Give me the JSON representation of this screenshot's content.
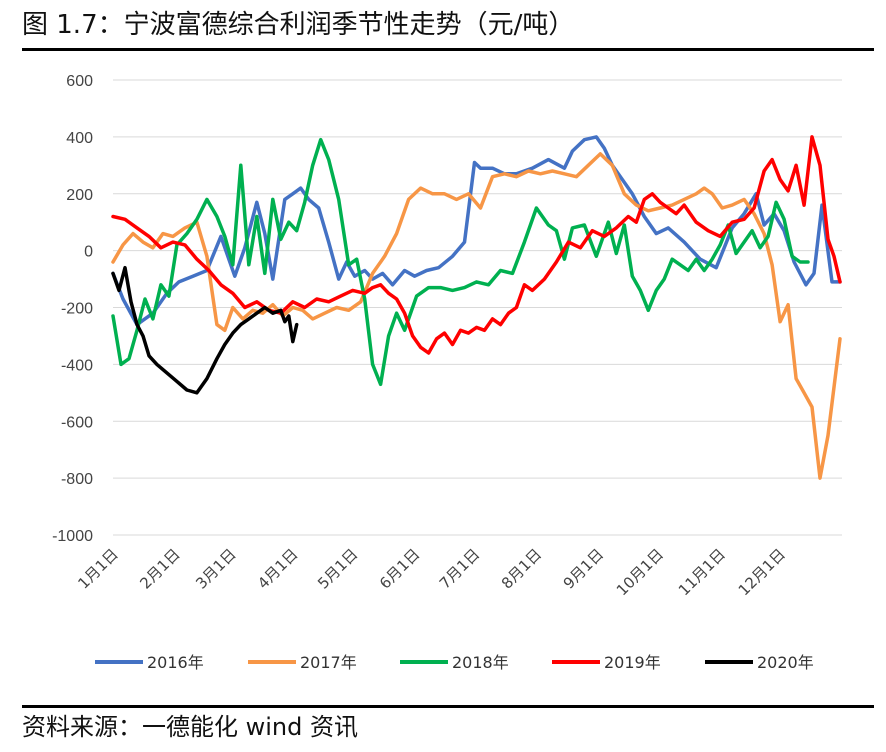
{
  "title": "图 1.7：宁波富德综合利润季节性走势（元/吨）",
  "source": "资料来源：一德能化 wind 资讯",
  "chart_data": {
    "type": "line",
    "title": "图 1.7：宁波富德综合利润季节性走势（元/吨）",
    "ylim": [
      -1000,
      600
    ],
    "yticks": [
      600,
      400,
      200,
      0,
      -200,
      -400,
      -600,
      -800,
      -1000
    ],
    "xlim": [
      0,
      365
    ],
    "xtick_labels": [
      "1月1日",
      "2月1日",
      "3月1日",
      "4月1日",
      "5月1日",
      "6月1日",
      "7月1日",
      "8月1日",
      "9月1日",
      "10月1日",
      "11月1日",
      "12月1日"
    ],
    "xtick_days": [
      0,
      31,
      59,
      90,
      120,
      151,
      181,
      212,
      243,
      273,
      304,
      334
    ],
    "grid": "horizontal",
    "legend_position": "bottom",
    "series": [
      {
        "name": "2016年",
        "color": "#4472C4",
        "x": [
          0,
          5,
          12,
          20,
          27,
          33,
          40,
          47,
          54,
          61,
          66,
          72,
          76,
          80,
          86,
          90,
          94,
          98,
          103,
          108,
          113,
          117,
          121,
          126,
          130,
          135,
          140,
          146,
          151,
          157,
          163,
          170,
          176,
          181,
          184,
          190,
          196,
          202,
          210,
          218,
          226,
          230,
          236,
          242,
          246,
          250,
          255,
          260,
          266,
          272,
          278,
          286,
          294,
          302,
          310,
          316,
          322,
          326,
          331,
          336,
          341,
          347,
          351,
          355,
          360,
          364
        ],
        "y": [
          -80,
          -170,
          -260,
          -220,
          -150,
          -110,
          -90,
          -70,
          50,
          -90,
          10,
          170,
          60,
          -100,
          180,
          200,
          220,
          180,
          150,
          30,
          -100,
          -40,
          -90,
          -70,
          -100,
          -80,
          -120,
          -70,
          -90,
          -70,
          -60,
          -20,
          30,
          310,
          290,
          290,
          270,
          270,
          290,
          320,
          290,
          350,
          390,
          400,
          360,
          300,
          250,
          200,
          120,
          60,
          80,
          30,
          -30,
          -60,
          80,
          130,
          200,
          90,
          130,
          70,
          -40,
          -120,
          -80,
          160,
          -110,
          -110
        ]
      },
      {
        "name": "2017年",
        "color": "#F79646",
        "x": [
          0,
          5,
          10,
          15,
          20,
          25,
          30,
          36,
          42,
          47,
          52,
          56,
          60,
          65,
          70,
          75,
          80,
          85,
          90,
          95,
          100,
          106,
          112,
          118,
          124,
          130,
          136,
          142,
          148,
          154,
          160,
          166,
          172,
          178,
          184,
          190,
          196,
          202,
          208,
          214,
          220,
          226,
          232,
          238,
          244,
          250,
          256,
          262,
          268,
          274,
          280,
          286,
          292,
          296,
          300,
          305,
          310,
          316,
          321,
          326,
          330,
          334,
          338,
          342,
          346,
          350,
          354,
          358,
          364
        ],
        "y": [
          -40,
          20,
          60,
          30,
          10,
          60,
          50,
          80,
          100,
          -20,
          -260,
          -280,
          -200,
          -240,
          -210,
          -220,
          -190,
          -230,
          -200,
          -210,
          -240,
          -220,
          -200,
          -210,
          -180,
          -80,
          -20,
          60,
          180,
          220,
          200,
          200,
          180,
          200,
          150,
          260,
          270,
          260,
          280,
          270,
          280,
          270,
          260,
          300,
          340,
          300,
          200,
          160,
          140,
          150,
          160,
          180,
          200,
          220,
          200,
          150,
          160,
          180,
          130,
          60,
          -50,
          -250,
          -190,
          -450,
          -500,
          -550,
          -800,
          -650,
          -310
        ]
      },
      {
        "name": "2018年",
        "color": "#00B050",
        "x": [
          0,
          4,
          8,
          12,
          16,
          20,
          24,
          28,
          32,
          37,
          42,
          47,
          52,
          56,
          60,
          64,
          68,
          72,
          76,
          80,
          84,
          88,
          92,
          96,
          100,
          104,
          108,
          113,
          118,
          122,
          126,
          130,
          134,
          138,
          142,
          146,
          152,
          158,
          164,
          170,
          176,
          182,
          188,
          194,
          200,
          206,
          212,
          218,
          222,
          226,
          230,
          236,
          242,
          248,
          252,
          256,
          260,
          264,
          268,
          272,
          276,
          280,
          284,
          288,
          292,
          296,
          300,
          304,
          308,
          312,
          316,
          320,
          324,
          328,
          332,
          336,
          340,
          344,
          348
        ],
        "y": [
          -230,
          -400,
          -380,
          -280,
          -170,
          -240,
          -120,
          -160,
          20,
          60,
          110,
          180,
          120,
          50,
          -50,
          300,
          -50,
          120,
          -80,
          180,
          40,
          100,
          70,
          170,
          300,
          390,
          320,
          180,
          -50,
          -30,
          -170,
          -400,
          -470,
          -300,
          -220,
          -280,
          -160,
          -130,
          -130,
          -140,
          -130,
          -110,
          -120,
          -70,
          -80,
          30,
          150,
          90,
          70,
          -30,
          80,
          90,
          -20,
          100,
          -10,
          90,
          -90,
          -140,
          -210,
          -140,
          -100,
          -30,
          -50,
          -70,
          -30,
          -70,
          -30,
          20,
          90,
          -10,
          30,
          70,
          10,
          50,
          170,
          110,
          -20,
          -40,
          -40
        ]
      },
      {
        "name": "2019年",
        "color": "#FF0000",
        "x": [
          0,
          6,
          12,
          18,
          24,
          30,
          36,
          42,
          48,
          54,
          60,
          66,
          72,
          78,
          84,
          90,
          96,
          102,
          108,
          114,
          120,
          126,
          130,
          134,
          138,
          142,
          146,
          150,
          154,
          158,
          162,
          166,
          170,
          174,
          178,
          182,
          186,
          190,
          194,
          198,
          202,
          206,
          210,
          216,
          222,
          228,
          234,
          240,
          246,
          252,
          258,
          262,
          266,
          270,
          274,
          278,
          282,
          286,
          292,
          298,
          304,
          310,
          316,
          321,
          326,
          330,
          334,
          338,
          342,
          346,
          350,
          354,
          358,
          361,
          364
        ],
        "y": [
          120,
          110,
          80,
          50,
          10,
          30,
          20,
          -30,
          -70,
          -120,
          -150,
          -200,
          -180,
          -210,
          -220,
          -180,
          -200,
          -170,
          -180,
          -160,
          -140,
          -150,
          -130,
          -120,
          -150,
          -170,
          -220,
          -300,
          -340,
          -360,
          -310,
          -290,
          -330,
          -280,
          -290,
          -270,
          -280,
          -240,
          -260,
          -220,
          -200,
          -120,
          -140,
          -100,
          -40,
          30,
          10,
          70,
          50,
          80,
          120,
          100,
          180,
          200,
          170,
          150,
          130,
          160,
          100,
          70,
          50,
          100,
          110,
          150,
          280,
          320,
          250,
          210,
          300,
          160,
          400,
          300,
          40,
          -20,
          -110
        ]
      },
      {
        "name": "2020年",
        "color": "#000000",
        "x": [
          0,
          3,
          6,
          9,
          12,
          15,
          18,
          22,
          27,
          32,
          37,
          42,
          47,
          52,
          56,
          60,
          64,
          68,
          72,
          76,
          80,
          84,
          86,
          88,
          90,
          92
        ],
        "y": [
          -80,
          -140,
          -60,
          -180,
          -260,
          -300,
          -370,
          -400,
          -430,
          -460,
          -490,
          -500,
          -450,
          -380,
          -330,
          -290,
          -260,
          -240,
          -220,
          -200,
          -220,
          -210,
          -250,
          -230,
          -320,
          -260
        ]
      }
    ]
  }
}
